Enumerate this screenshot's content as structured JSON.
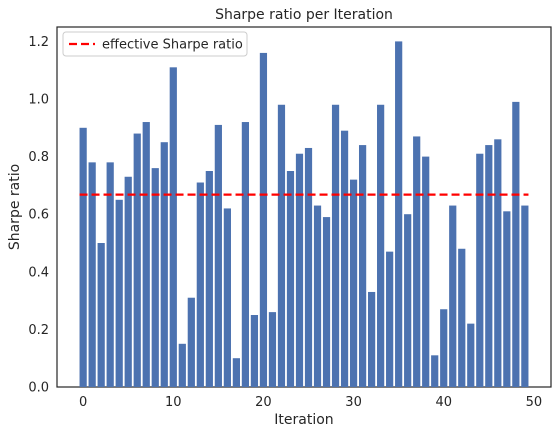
{
  "chart_data": {
    "type": "bar",
    "title": "Sharpe ratio per Iteration",
    "xlabel": "Iteration",
    "ylabel": "Sharpe ratio",
    "x": [
      0,
      1,
      2,
      3,
      4,
      5,
      6,
      7,
      8,
      9,
      10,
      11,
      12,
      13,
      14,
      15,
      16,
      17,
      18,
      19,
      20,
      21,
      22,
      23,
      24,
      25,
      26,
      27,
      28,
      29,
      30,
      31,
      32,
      33,
      34,
      35,
      36,
      37,
      38,
      39,
      40,
      41,
      42,
      43,
      44,
      45,
      46,
      47,
      48,
      49
    ],
    "values": [
      0.9,
      0.78,
      0.5,
      0.78,
      0.65,
      0.73,
      0.88,
      0.92,
      0.76,
      0.85,
      1.11,
      0.15,
      0.31,
      0.71,
      0.75,
      0.91,
      0.62,
      0.1,
      0.92,
      0.25,
      1.16,
      0.26,
      0.98,
      0.75,
      0.81,
      0.83,
      0.63,
      0.59,
      0.98,
      0.89,
      0.72,
      0.84,
      0.33,
      0.98,
      0.47,
      1.2,
      0.6,
      0.87,
      0.8,
      0.11,
      0.27,
      0.63,
      0.48,
      0.22,
      0.81,
      0.84,
      0.86,
      0.61,
      0.99,
      0.63
    ],
    "bar_color": "#4c72b0",
    "reference_line": {
      "name": "effective Sharpe ratio",
      "value": 0.668,
      "color": "#ff0000",
      "style": "dashed"
    },
    "xlim": [
      -2.9,
      51.9
    ],
    "ylim": [
      0,
      1.25
    ],
    "xticks": [
      0,
      10,
      20,
      30,
      40,
      50
    ],
    "yticks": [
      0.0,
      0.2,
      0.4,
      0.6,
      0.8,
      1.0,
      1.2
    ],
    "xtick_labels": [
      "0",
      "10",
      "20",
      "30",
      "40",
      "50"
    ],
    "ytick_labels": [
      "0.0",
      "0.2",
      "0.4",
      "0.6",
      "0.8",
      "1.0",
      "1.2"
    ],
    "grid": false,
    "legend": {
      "position": "top-left",
      "entries": [
        "effective Sharpe ratio"
      ]
    }
  }
}
